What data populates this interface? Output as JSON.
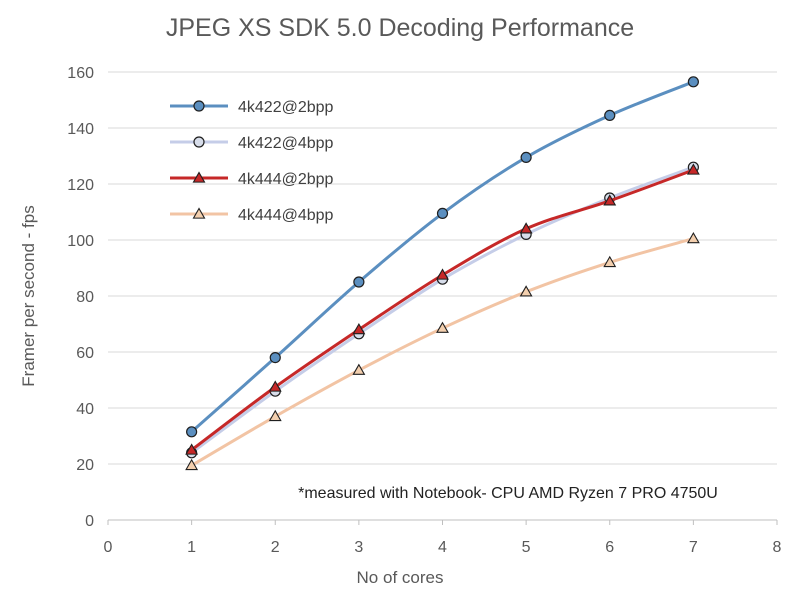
{
  "chart_data": {
    "type": "line",
    "title": "JPEG XS SDK 5.0 Decoding Performance",
    "xlabel": "No of cores",
    "ylabel": "Framer per second - fps",
    "xlim": [
      0,
      8
    ],
    "ylim": [
      0,
      160
    ],
    "xticks": [
      "0",
      "1",
      "2",
      "3",
      "4",
      "5",
      "6",
      "7",
      "8"
    ],
    "yticks": [
      "0",
      "20",
      "40",
      "60",
      "80",
      "100",
      "120",
      "140",
      "160"
    ],
    "grid": "horizontal",
    "legend_position": "top-left",
    "annotation": "*measured with Notebook- CPU AMD Ryzen 7 PRO 4750U",
    "x": [
      1,
      2,
      3,
      4,
      5,
      6,
      7
    ],
    "series": [
      {
        "name": "4k422@2bpp",
        "values": [
          31.5,
          58,
          85,
          109.5,
          129.5,
          144.5,
          156.5
        ],
        "color": "#5b8fc0",
        "marker": "circle",
        "marker_fill": "#5b8fc0"
      },
      {
        "name": "4k422@4bpp",
        "values": [
          24,
          46,
          66.5,
          86,
          102,
          115,
          126
        ],
        "color": "#c5cde8",
        "marker": "circle",
        "marker_fill": "#d7ddea"
      },
      {
        "name": "4k444@2bpp",
        "values": [
          25,
          47.5,
          68,
          87.5,
          104,
          114,
          125
        ],
        "color": "#c62828",
        "marker": "triangle",
        "marker_fill": "#c62828"
      },
      {
        "name": "4k444@4bpp",
        "values": [
          19.5,
          37,
          53.5,
          68.5,
          81.5,
          92,
          100.5
        ],
        "color": "#f2c4a4",
        "marker": "triangle",
        "marker_fill": "#f3cfae"
      }
    ]
  }
}
